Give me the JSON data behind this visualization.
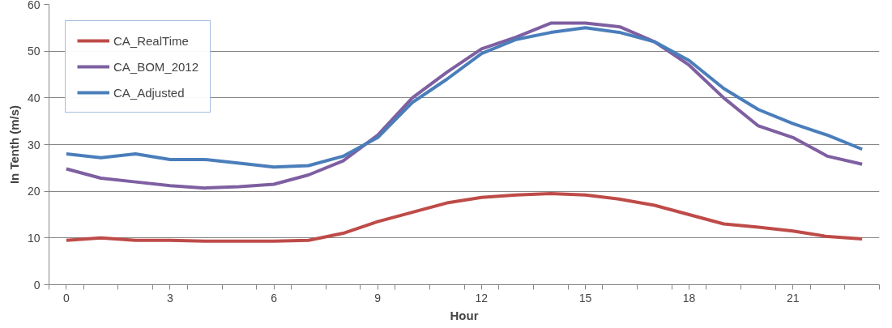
{
  "chart_data": {
    "type": "line",
    "xlabel": "Hour",
    "ylabel": "In Tenth (m/s)",
    "x": [
      0,
      1,
      2,
      3,
      4,
      5,
      6,
      7,
      8,
      9,
      10,
      11,
      12,
      13,
      14,
      15,
      16,
      17,
      18,
      19,
      20,
      21,
      22,
      23
    ],
    "series": [
      {
        "name": "CA_RealTime",
        "color": "#be4b48",
        "values": [
          9.5,
          10,
          9.5,
          9.5,
          9.3,
          9.3,
          9.3,
          9.5,
          11,
          13.5,
          15.5,
          17.5,
          18.7,
          19.2,
          19.5,
          19.2,
          18.3,
          17,
          15,
          13,
          12.3,
          11.5,
          10.3,
          9.8
        ]
      },
      {
        "name": "CA_BOM_2012",
        "color": "#7e5fa1",
        "values": [
          24.8,
          22.8,
          22,
          21.2,
          20.7,
          21,
          21.5,
          23.5,
          26.5,
          32,
          40,
          45.5,
          50.5,
          53,
          56,
          56,
          55.2,
          52,
          47,
          40,
          34,
          31.5,
          27.5,
          25.8
        ]
      },
      {
        "name": "CA_Adjusted",
        "color": "#4a7ebb",
        "values": [
          28,
          27.2,
          28,
          26.8,
          26.8,
          26,
          25.2,
          25.5,
          27.5,
          31.5,
          39,
          44,
          49.5,
          52.5,
          54,
          55,
          54,
          52,
          48,
          42,
          37.5,
          34.5,
          32,
          29
        ]
      }
    ],
    "xlim": [
      -0.5,
      23.5
    ],
    "xticks": [
      {
        "value": -0.5,
        "label": null
      },
      0,
      {
        "value": 0.5,
        "label": null
      },
      {
        "value": 1.5,
        "label": null
      },
      {
        "value": 2.5,
        "label": null
      },
      3,
      {
        "value": 3.5,
        "label": null
      },
      {
        "value": 4.5,
        "label": null
      },
      {
        "value": 5.5,
        "label": null
      },
      6,
      {
        "value": 6.5,
        "label": null
      },
      {
        "value": 7.5,
        "label": null
      },
      {
        "value": 8.5,
        "label": null
      },
      9,
      {
        "value": 9.5,
        "label": null
      },
      {
        "value": 10.5,
        "label": null
      },
      {
        "value": 11.5,
        "label": null
      },
      12,
      {
        "value": 12.5,
        "label": null
      },
      {
        "value": 13.5,
        "label": null
      },
      {
        "value": 14.5,
        "label": null
      },
      15,
      {
        "value": 15.5,
        "label": null
      },
      {
        "value": 16.5,
        "label": null
      },
      {
        "value": 17.5,
        "label": null
      },
      18,
      {
        "value": 18.5,
        "label": null
      },
      {
        "value": 19.5,
        "label": null
      },
      {
        "value": 20.5,
        "label": null
      },
      21,
      {
        "value": 21.5,
        "label": null
      },
      {
        "value": 22.5,
        "label": null
      },
      {
        "value": 23.5,
        "label": null
      }
    ],
    "ylim": [
      0,
      60
    ],
    "yticks": [
      0,
      10,
      20,
      30,
      40,
      50,
      60
    ],
    "grid": "y",
    "legend": "top left",
    "marker": "none",
    "line_style": "solid"
  }
}
